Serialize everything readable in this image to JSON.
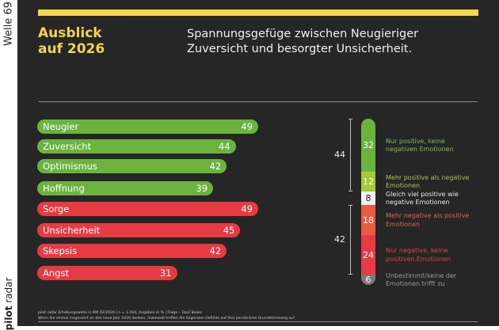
{
  "sidebar": {
    "wave_label": "Welle 69",
    "brand_bold": "pilot",
    "brand_light": " radar"
  },
  "header": {
    "title_line1": "Ausblick",
    "title_line2": "auf 2026",
    "subtitle_line1": "Spannungsgefüge zwischen Neugieriger",
    "subtitle_line2": "Zuversicht und besorgter Unsicherheit."
  },
  "colors": {
    "accent_yellow": "#f5d44f",
    "positive_green": "#6ab43e",
    "negative_red": "#e63b43",
    "background": "#262626"
  },
  "chart_data": [
    {
      "type": "bar",
      "orientation": "horizontal",
      "title": "",
      "categories": [
        "Neugier",
        "Zuversicht",
        "Optimismus",
        "Hoffnung",
        "Sorge",
        "Unsicherheit",
        "Skepsis",
        "Angst"
      ],
      "values": [
        49,
        44,
        42,
        39,
        49,
        45,
        42,
        31
      ],
      "groups": [
        "positive",
        "positive",
        "positive",
        "positive",
        "negative",
        "negative",
        "negative",
        "negative"
      ],
      "unit": "%",
      "xlim": [
        0,
        49
      ]
    },
    {
      "type": "bar",
      "orientation": "vertical-stacked",
      "title": "",
      "unit": "%",
      "segments": [
        {
          "label": "Nur positive, keine negativen Emotionen",
          "value": 32,
          "color": "#6ab43e",
          "text_color": "#86b84f"
        },
        {
          "label": "Mehr positive als negative Emotionen",
          "value": 12,
          "color": "#a4c93a",
          "text_color": "#a9c455"
        },
        {
          "label": "Gleich viel positive wie negative Emotionen",
          "value": 8,
          "color": "#f2f2f2",
          "text_color": "#e8e8e8"
        },
        {
          "label": "Mehr negative als positive Emotionen",
          "value": 18,
          "color": "#ec5a42",
          "text_color": "#e0614f"
        },
        {
          "label": "Nur negative, keine positiven Emotionen",
          "value": 24,
          "color": "#e63b43",
          "text_color": "#d9464c"
        },
        {
          "label": "Unbestimmt/keine der Emotionen trifft zu",
          "value": 6,
          "color": "#7a7a78",
          "text_color": "#9a9a98"
        }
      ],
      "brackets": [
        {
          "label": "44",
          "covers": [
            "Nur positive, keine negativen Emotionen",
            "Mehr positive als negative Emotionen"
          ]
        },
        {
          "label": "42",
          "covers": [
            "Mehr negative als positive Emotionen",
            "Nur negative, keine positiven Emotionen"
          ]
        }
      ]
    }
  ],
  "footer": {
    "line1": "pilot radar Erhebungswelle in KW 02/2026 | n = 1.004, Angaben in % | Frage – Top2 Boxes",
    "line2": "Wenn Sie einmal insgesamt an das neue Jahr 2026 denken, inwieweit treffen die folgenden Gefühle auf Ihre persönliche Grundstimmung zu?"
  }
}
